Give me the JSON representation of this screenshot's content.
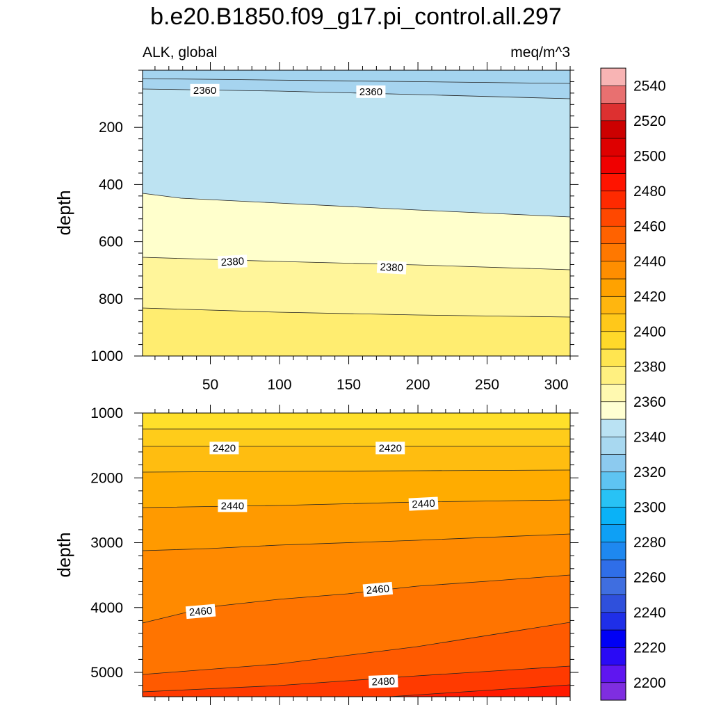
{
  "chart_data": {
    "type": "contour",
    "title": "b.e20.B1850.f09_g17.pi_control.all.297",
    "left_subtitle": "ALK, global",
    "right_subtitle": "meq/m^3",
    "x_range": [
      1,
      310
    ],
    "x_ticks": [
      50,
      100,
      150,
      200,
      250,
      300
    ],
    "ylabel": "depth",
    "upper_panel": {
      "y_range": [
        0,
        1000
      ],
      "y_ticks": [
        200,
        400,
        600,
        800,
        1000
      ],
      "contour_labels": [
        {
          "text": "2360",
          "x": 46,
          "depth": 70
        },
        {
          "text": "2360",
          "x": 166,
          "depth": 75
        },
        {
          "text": "2380",
          "x": 66,
          "depth": 670
        },
        {
          "text": "2380",
          "x": 181,
          "depth": 690
        }
      ]
    },
    "lower_panel": {
      "y_range": [
        1000,
        5375
      ],
      "y_ticks": [
        1000,
        2000,
        3000,
        4000,
        5000
      ],
      "contour_labels": [
        {
          "text": "2420",
          "x": 60,
          "depth": 1540
        },
        {
          "text": "2420",
          "x": 180,
          "depth": 1540
        },
        {
          "text": "2440",
          "x": 66,
          "depth": 2430
        },
        {
          "text": "2440",
          "x": 204,
          "depth": 2400
        },
        {
          "text": "2460",
          "x": 43,
          "depth": 4060
        },
        {
          "text": "2460",
          "x": 171,
          "depth": 3720
        },
        {
          "text": "2480",
          "x": 175,
          "depth": 5140
        }
      ]
    },
    "colorbar": {
      "labels": [
        "2200",
        "2220",
        "2240",
        "2260",
        "2280",
        "2300",
        "2320",
        "2340",
        "2360",
        "2380",
        "2400",
        "2420",
        "2440",
        "2460",
        "2480",
        "2500",
        "2520",
        "2540"
      ],
      "colors": [
        "#7f2ee0",
        "#5f16f0",
        "#2a0af5",
        "#0000f5",
        "#1f2fe8",
        "#2f50dc",
        "#3f6ee0",
        "#2f6ee8",
        "#1e88f0",
        "#0ea0f5",
        "#0ab2f7",
        "#28c2f5",
        "#5ec4f2",
        "#8ccaef",
        "#a8d8f0",
        "#bae2f3",
        "#ffffd2",
        "#fff9b0",
        "#fff080",
        "#ffe550",
        "#ffd92a",
        "#ffc81a",
        "#ffb60f",
        "#ffa200",
        "#ff8e00",
        "#ff7800",
        "#ff6200",
        "#ff4800",
        "#ff2a00",
        "#ff1400",
        "#f00000",
        "#de0000",
        "#cc0000",
        "#dd3030",
        "#e87070",
        "#f8b4b4"
      ]
    }
  }
}
